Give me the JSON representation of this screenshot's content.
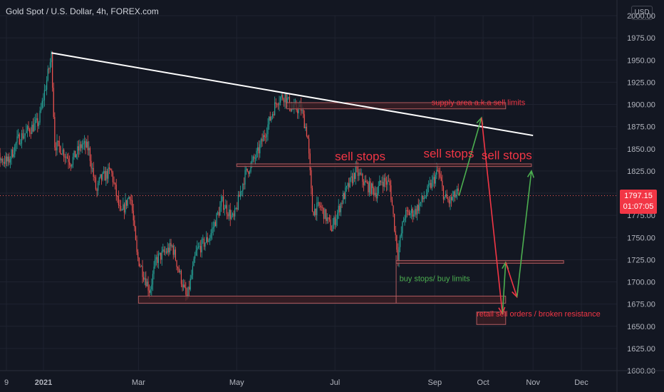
{
  "header": {
    "title": "Gold Spot / U.S. Dollar, 4h, FOREX.com",
    "currency": "USD"
  },
  "price_tag": {
    "price": "1797.15",
    "countdown": "01:07:05"
  },
  "colors": {
    "background": "#131722",
    "up": "#26a69a",
    "down": "#ef5350",
    "trendline": "#ffffff",
    "zone_fill": "#3d1f24",
    "zone_border": "#b05a5e",
    "annotation_red": "#f23645",
    "annotation_green": "#4caf50",
    "axis_text": "#b2b5be"
  },
  "chart_data": {
    "type": "candlestick",
    "title": "Gold Spot / U.S. Dollar, 4h, FOREX.com",
    "ylim": [
      1600,
      2000
    ],
    "y_ticks": [
      1600,
      1625,
      1650,
      1675,
      1700,
      1725,
      1750,
      1775,
      1800,
      1825,
      1850,
      1875,
      1900,
      1925,
      1950,
      1975,
      2000
    ],
    "x_tick_labels": [
      "9",
      "2021",
      "Mar",
      "May",
      "Jul",
      "Sep",
      "Oct",
      "Nov",
      "Dec"
    ],
    "x_ticks_dates": [
      "2020-12-09",
      "2021-01-01",
      "2021-03-01",
      "2021-05-01",
      "2021-07-01",
      "2021-09-01",
      "2021-10-01",
      "2021-11-01",
      "2021-12-01"
    ],
    "close_path": [
      [
        "2020-11-23",
        1805
      ],
      [
        "2020-11-27",
        1785
      ],
      [
        "2020-11-30",
        1770
      ],
      [
        "2020-12-04",
        1840
      ],
      [
        "2020-12-10",
        1835
      ],
      [
        "2020-12-16",
        1860
      ],
      [
        "2020-12-22",
        1870
      ],
      [
        "2020-12-29",
        1880
      ],
      [
        "2021-01-06",
        1955
      ],
      [
        "2021-01-08",
        1855
      ],
      [
        "2021-01-12",
        1850
      ],
      [
        "2021-01-18",
        1835
      ],
      [
        "2021-01-25",
        1855
      ],
      [
        "2021-01-29",
        1850
      ],
      [
        "2021-02-03",
        1800
      ],
      [
        "2021-02-05",
        1815
      ],
      [
        "2021-02-12",
        1825
      ],
      [
        "2021-02-18",
        1775
      ],
      [
        "2021-02-24",
        1800
      ],
      [
        "2021-02-28",
        1730
      ],
      [
        "2021-03-08",
        1690
      ],
      [
        "2021-03-12",
        1725
      ],
      [
        "2021-03-22",
        1740
      ],
      [
        "2021-03-31",
        1680
      ],
      [
        "2021-04-06",
        1735
      ],
      [
        "2021-04-14",
        1750
      ],
      [
        "2021-04-22",
        1790
      ],
      [
        "2021-04-29",
        1770
      ],
      [
        "2021-05-06",
        1820
      ],
      [
        "2021-05-14",
        1845
      ],
      [
        "2021-05-21",
        1880
      ],
      [
        "2021-05-26",
        1905
      ],
      [
        "2021-05-31",
        1910
      ],
      [
        "2021-06-04",
        1895
      ],
      [
        "2021-06-10",
        1895
      ],
      [
        "2021-06-14",
        1865
      ],
      [
        "2021-06-17",
        1780
      ],
      [
        "2021-06-22",
        1785
      ],
      [
        "2021-06-29",
        1760
      ],
      [
        "2021-07-06",
        1795
      ],
      [
        "2021-07-14",
        1825
      ],
      [
        "2021-07-20",
        1810
      ],
      [
        "2021-07-27",
        1800
      ],
      [
        "2021-07-30",
        1815
      ],
      [
        "2021-08-04",
        1810
      ],
      [
        "2021-08-09",
        1730
      ],
      [
        "2021-08-13",
        1775
      ],
      [
        "2021-08-20",
        1780
      ],
      [
        "2021-08-27",
        1800
      ],
      [
        "2021-09-03",
        1825
      ],
      [
        "2021-09-07",
        1795
      ],
      [
        "2021-09-10",
        1790
      ],
      [
        "2021-09-15",
        1800
      ],
      [
        "2021-09-16",
        1797
      ]
    ],
    "current_price": 1797.15,
    "trendline": {
      "from": [
        "2021-01-06",
        1958
      ],
      "to": [
        "2021-11-01",
        1865
      ]
    },
    "zones": [
      {
        "name": "supply",
        "from": "2021-06-01",
        "to": "2021-10-15",
        "y": [
          1895,
          1902
        ]
      },
      {
        "name": "sell-stops",
        "from": "2021-05-01",
        "to": "2021-10-31",
        "y": [
          1830,
          1833
        ]
      },
      {
        "name": "demand-left",
        "from": "2021-03-01",
        "to": "2021-08-08",
        "y": [
          1676,
          1684
        ]
      },
      {
        "name": "buy-stops",
        "from": "2021-08-08",
        "to": "2021-10-15",
        "y": [
          1676,
          1684
        ]
      },
      {
        "name": "right-line",
        "from": "2021-08-08",
        "to": "2021-11-20",
        "y": [
          1721,
          1724
        ]
      },
      {
        "name": "broken-resistance",
        "from": "2021-09-27",
        "to": "2021-10-15",
        "y": [
          1652,
          1666
        ]
      }
    ],
    "projection_arrows": [
      {
        "color": "green",
        "from": [
          "2021-09-16",
          1797
        ],
        "to": [
          "2021-09-30",
          1885
        ]
      },
      {
        "color": "red",
        "from": [
          "2021-09-30",
          1885
        ],
        "to": [
          "2021-10-13",
          1664
        ]
      },
      {
        "color": "green",
        "from": [
          "2021-10-13",
          1664
        ],
        "to": [
          "2021-10-15",
          1722
        ]
      },
      {
        "color": "red",
        "from": [
          "2021-10-15",
          1722
        ],
        "to": [
          "2021-10-22",
          1683
        ]
      },
      {
        "color": "green",
        "from": [
          "2021-10-22",
          1683
        ],
        "to": [
          "2021-10-31",
          1825
        ]
      }
    ],
    "annotations": [
      {
        "text": "supply area a.k.a sell limits",
        "color": "red",
        "at": [
          "2021-08-30",
          1899
        ]
      },
      {
        "text": "sell stops",
        "color": "red",
        "at": [
          "2021-07-01",
          1837
        ]
      },
      {
        "text": "sell stops",
        "color": "red",
        "at": [
          "2021-08-25",
          1840
        ]
      },
      {
        "text": "sell stops",
        "color": "red",
        "at": [
          "2021-09-30",
          1838
        ]
      },
      {
        "text": "buy stops/ buy limits",
        "color": "green",
        "at": [
          "2021-08-10",
          1701
        ]
      },
      {
        "text": "retail sell orders / broken resistance",
        "color": "red",
        "at": [
          "2021-09-27",
          1661
        ]
      }
    ]
  }
}
